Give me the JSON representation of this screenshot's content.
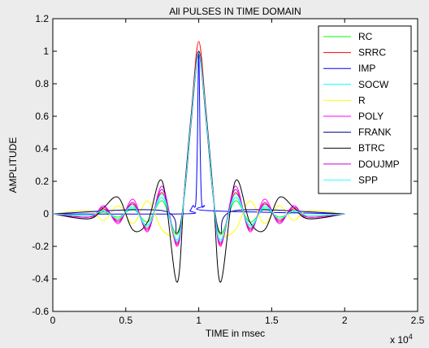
{
  "chart_data": {
    "type": "line",
    "title": "All PULSES IN TIME DOMAIN",
    "xlabel": "TIME in msec",
    "ylabel": "AMPLITUDE",
    "x_exponent_label": "x 10",
    "x_exponent": "4",
    "xlim": [
      0,
      2.5
    ],
    "ylim": [
      -0.6,
      1.2
    ],
    "x_ticks": [
      0,
      0.5,
      1,
      1.5,
      2,
      2.5
    ],
    "x_tick_labels": [
      "0",
      "0.5",
      "1",
      "1.5",
      "2",
      "2.5"
    ],
    "y_ticks": [
      -0.6,
      -0.4,
      -0.2,
      0,
      0.2,
      0.4,
      0.6,
      0.8,
      1,
      1.2
    ],
    "y_tick_labels": [
      "-0.6",
      "-0.4",
      "-0.2",
      "0",
      "0.2",
      "0.4",
      "0.6",
      "0.8",
      "1",
      "1.2"
    ],
    "grid": false,
    "legend_position": "top-right",
    "series": [
      {
        "name": "RC",
        "color": "#00ff00",
        "x": [
          0,
          0.25,
          0.35,
          0.45,
          0.55,
          0.65,
          0.75,
          0.85,
          0.9,
          0.95,
          1,
          1.05,
          1.1,
          1.15,
          1.25,
          1.35,
          1.45,
          1.55,
          1.65,
          1.75,
          2
        ],
        "y": [
          0,
          -0.01,
          0.01,
          -0.02,
          0.03,
          -0.05,
          0.08,
          -0.13,
          0.1,
          0.6,
          1.0,
          0.6,
          0.1,
          -0.13,
          0.08,
          -0.05,
          0.03,
          -0.02,
          0.01,
          -0.01,
          0
        ]
      },
      {
        "name": "SRRC",
        "color": "#ff0000",
        "x": [
          0,
          0.25,
          0.35,
          0.45,
          0.55,
          0.65,
          0.75,
          0.85,
          0.9,
          0.95,
          1,
          1.05,
          1.1,
          1.15,
          1.25,
          1.35,
          1.45,
          1.55,
          1.65,
          1.75,
          2
        ],
        "y": [
          0,
          -0.02,
          0.03,
          -0.04,
          0.06,
          -0.09,
          0.13,
          -0.19,
          0.12,
          0.63,
          1.06,
          0.63,
          0.12,
          -0.19,
          0.13,
          -0.09,
          0.06,
          -0.04,
          0.03,
          -0.02,
          0
        ]
      },
      {
        "name": "IMP",
        "color": "#0000ff",
        "x": [
          0,
          0.9,
          0.94,
          0.96,
          0.98,
          0.99,
          1,
          1.01,
          1.02,
          1.04,
          1.06,
          2
        ],
        "y": [
          0,
          0,
          0.02,
          0.05,
          0.07,
          0.4,
          0.99,
          0.4,
          0.07,
          0.05,
          0.02,
          0
        ]
      },
      {
        "name": "SOCW",
        "color": "#00ffff",
        "x": [
          0,
          0.25,
          0.35,
          0.45,
          0.55,
          0.65,
          0.75,
          0.85,
          0.9,
          0.95,
          1,
          1.05,
          1.1,
          1.15,
          1.25,
          1.35,
          1.45,
          1.55,
          1.65,
          1.75,
          2
        ],
        "y": [
          0,
          -0.01,
          0.02,
          -0.03,
          0.04,
          -0.07,
          0.1,
          -0.16,
          0.11,
          0.61,
          1.0,
          0.61,
          0.11,
          -0.16,
          0.1,
          -0.07,
          0.04,
          -0.03,
          0.02,
          -0.01,
          0
        ]
      },
      {
        "name": "R",
        "color": "#ffff00",
        "x": [
          0,
          0.25,
          0.35,
          0.45,
          0.55,
          0.65,
          0.75,
          0.85,
          0.9,
          0.95,
          1,
          1.05,
          1.1,
          1.15,
          1.25,
          1.35,
          1.45,
          1.55,
          1.65,
          1.75,
          2
        ],
        "y": [
          0,
          0.02,
          -0.04,
          0.05,
          -0.06,
          0.08,
          -0.1,
          -0.12,
          0.1,
          0.58,
          0.98,
          0.58,
          0.1,
          -0.12,
          -0.1,
          0.08,
          -0.06,
          0.05,
          -0.04,
          0.02,
          0
        ]
      },
      {
        "name": "POLY",
        "color": "#ff00ff",
        "x": [
          0,
          0.25,
          0.35,
          0.45,
          0.55,
          0.65,
          0.75,
          0.85,
          0.9,
          0.95,
          1,
          1.05,
          1.1,
          1.15,
          1.25,
          1.35,
          1.45,
          1.55,
          1.65,
          1.75,
          2
        ],
        "y": [
          0,
          -0.03,
          0.05,
          -0.06,
          0.09,
          -0.11,
          0.17,
          -0.2,
          0.12,
          0.6,
          1.0,
          0.6,
          0.12,
          -0.2,
          0.17,
          -0.11,
          0.09,
          -0.06,
          0.05,
          -0.03,
          0
        ]
      },
      {
        "name": "FRANK",
        "color": "#00008b",
        "x": [
          0,
          0.75,
          0.85,
          0.9,
          0.95,
          1,
          1.05,
          1.1,
          1.15,
          1.25,
          2
        ],
        "y": [
          0,
          0.02,
          -0.12,
          0.1,
          0.58,
          0.98,
          0.58,
          0.1,
          -0.12,
          0.02,
          0
        ]
      },
      {
        "name": "BTRC",
        "color": "#000000",
        "x": [
          0,
          0.25,
          0.35,
          0.45,
          0.55,
          0.65,
          0.75,
          0.85,
          0.9,
          0.95,
          1,
          1.05,
          1.1,
          1.15,
          1.25,
          1.35,
          1.45,
          1.55,
          1.65,
          1.75,
          2
        ],
        "y": [
          0,
          -0.03,
          0.04,
          0.1,
          -0.1,
          -0.05,
          0.2,
          -0.42,
          0.12,
          0.62,
          1.0,
          0.62,
          0.12,
          -0.42,
          0.2,
          -0.05,
          -0.1,
          0.1,
          0.04,
          -0.03,
          0
        ]
      },
      {
        "name": "DOUJMP",
        "color": "#cc00cc",
        "x": [
          0,
          0.25,
          0.35,
          0.45,
          0.55,
          0.65,
          0.75,
          0.85,
          0.9,
          0.95,
          1,
          1.05,
          1.1,
          1.15,
          1.25,
          1.35,
          1.45,
          1.55,
          1.65,
          1.75,
          2
        ],
        "y": [
          0,
          -0.02,
          0.04,
          -0.05,
          0.07,
          -0.1,
          0.15,
          -0.18,
          0.11,
          0.59,
          0.99,
          0.59,
          0.11,
          -0.18,
          0.15,
          -0.1,
          0.07,
          -0.05,
          0.04,
          -0.02,
          0
        ]
      },
      {
        "name": "SPP",
        "color": "#33ffff",
        "x": [
          0,
          0.25,
          0.35,
          0.45,
          0.55,
          0.65,
          0.75,
          0.85,
          0.9,
          0.95,
          1,
          1.05,
          1.1,
          1.15,
          1.25,
          1.35,
          1.45,
          1.55,
          1.65,
          1.75,
          2
        ],
        "y": [
          0,
          -0.01,
          0.02,
          -0.03,
          0.05,
          -0.08,
          0.12,
          -0.17,
          0.11,
          0.6,
          0.99,
          0.6,
          0.11,
          -0.17,
          0.12,
          -0.08,
          0.05,
          -0.03,
          0.02,
          -0.01,
          0
        ]
      }
    ]
  }
}
